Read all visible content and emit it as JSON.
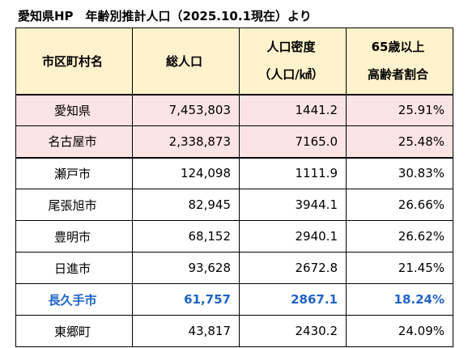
{
  "title": "愛知県HP　年齢別推計人口（2025.10.1現在）より",
  "colors": {
    "header_bg": "#fff2cc",
    "highlight_row_bg": "#fce4e4",
    "emphasis_text": "#1f64c8"
  },
  "table": {
    "headers": {
      "name": "市区町村名",
      "population": "総人口",
      "density_line1": "人口密度",
      "density_line2": "（人口/㎢）",
      "elderly_line1": "65歳以上",
      "elderly_line2": "高齢者割合"
    },
    "rows": [
      {
        "name": "愛知県",
        "population": "7,453,803",
        "density": "1441.2",
        "elderly": "25.91%"
      },
      {
        "name": "名古屋市",
        "population": "2,338,873",
        "density": "7165.0",
        "elderly": "25.48%"
      },
      {
        "name": "瀬戸市",
        "population": "124,098",
        "density": "1111.9",
        "elderly": "30.83%"
      },
      {
        "name": "尾張旭市",
        "population": "82,945",
        "density": "3944.1",
        "elderly": "26.66%"
      },
      {
        "name": "豊明市",
        "population": "68,152",
        "density": "2940.1",
        "elderly": "26.62%"
      },
      {
        "name": "日進市",
        "population": "93,628",
        "density": "2672.8",
        "elderly": "21.45%"
      },
      {
        "name": "長久手市",
        "population": "61,757",
        "density": "2867.1",
        "elderly": "18.24%"
      },
      {
        "name": "東郷町",
        "population": "43,817",
        "density": "2430.2",
        "elderly": "24.09%"
      }
    ]
  }
}
